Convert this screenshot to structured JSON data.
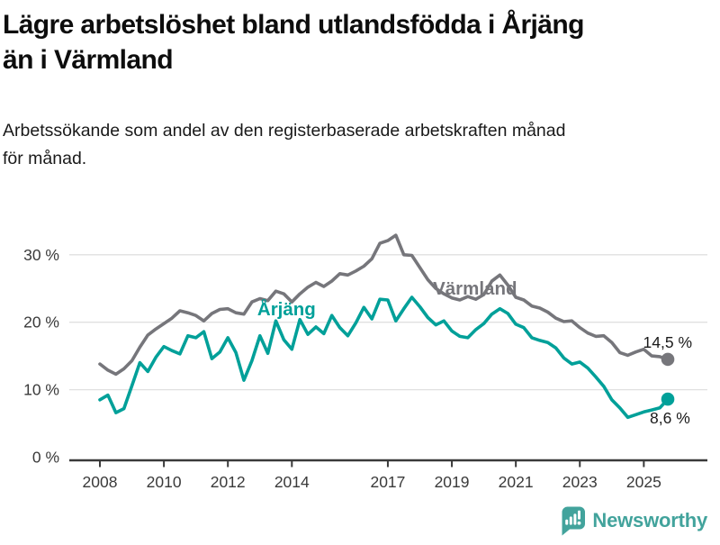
{
  "header": {
    "title_line1": "Lägre arbetslöshet bland utlandsfödda i Årjäng",
    "title_line2": "än i Värmland",
    "subtitle_line1": "Arbetssökande som andel av den registerbaserade arbetskraften månad",
    "subtitle_line2": "för månad."
  },
  "branding": {
    "logo_text": "Newsworthy",
    "brand_color": "#42a39c",
    "logo_icon": "newsworthy-speech-bubble-bar-chart-icon"
  },
  "chart_data": {
    "type": "line",
    "title": "Lägre arbetslöshet bland utlandsfödda i Årjäng än i Värmland",
    "subtitle": "Arbetssökande som andel av den registerbaserade arbetskraften månad för månad.",
    "grid": "horizontal",
    "legend_position": "inline-labels",
    "axis_color": "#3a3a3a",
    "gridline_color": "#e0e0e0",
    "tick_label_color": "#3a3a3a",
    "end_label_color": "#1a1a1a",
    "y_ticks": [
      0,
      10,
      20,
      30
    ],
    "y_suffix": " %",
    "ylim": [
      0,
      35
    ],
    "x_ticks": [
      "2008",
      "2010",
      "2012",
      "2014",
      "2017",
      "2019",
      "2021",
      "2023",
      "2025"
    ],
    "x_tick_years": [
      2008,
      2010,
      2012,
      2014,
      2017,
      2019,
      2021,
      2023,
      2025
    ],
    "x": [
      2008,
      2008.25,
      2008.5,
      2008.75,
      2009,
      2009.25,
      2009.5,
      2009.75,
      2010,
      2010.25,
      2010.5,
      2010.75,
      2011,
      2011.25,
      2011.5,
      2011.75,
      2012,
      2012.25,
      2012.5,
      2012.75,
      2013,
      2013.25,
      2013.5,
      2013.75,
      2014,
      2014.25,
      2014.5,
      2014.75,
      2015,
      2015.25,
      2015.5,
      2015.75,
      2016,
      2016.25,
      2016.5,
      2016.75,
      2017,
      2017.25,
      2017.5,
      2017.75,
      2018,
      2018.25,
      2018.5,
      2018.75,
      2019,
      2019.25,
      2019.5,
      2019.75,
      2020,
      2020.25,
      2020.5,
      2020.75,
      2021,
      2021.25,
      2021.5,
      2021.75,
      2022,
      2022.25,
      2022.5,
      2022.75,
      2023,
      2023.25,
      2023.5,
      2023.75,
      2024,
      2024.25,
      2024.5,
      2024.75,
      2025,
      2025.25,
      2025.5,
      2025.75
    ],
    "series": [
      {
        "name": "Värmland",
        "color": "#76767b",
        "end_label": "14,5 %",
        "end_value": 14.5,
        "end_label_anchor": "end",
        "end_label_dx": 27,
        "end_label_dy": -13,
        "inline_label": {
          "text": "Värmland",
          "x": 2018.41,
          "y": 24.1
        },
        "values": [
          13.8,
          12.9,
          12.3,
          13.1,
          14.3,
          16.3,
          18.1,
          19.0,
          19.8,
          20.6,
          21.7,
          21.4,
          21.0,
          20.2,
          21.3,
          21.9,
          22.0,
          21.4,
          21.2,
          23.0,
          23.5,
          23.2,
          24.6,
          24.2,
          23.0,
          24.2,
          25.2,
          25.9,
          25.3,
          26.1,
          27.2,
          27.0,
          27.6,
          28.3,
          29.4,
          31.7,
          32.1,
          32.9,
          30.0,
          29.9,
          28.1,
          26.3,
          25.0,
          24.2,
          23.6,
          23.3,
          23.8,
          23.4,
          24.1,
          26.1,
          27.0,
          25.5,
          23.7,
          23.3,
          22.4,
          22.1,
          21.5,
          20.6,
          20.1,
          20.2,
          19.2,
          18.4,
          17.9,
          18.0,
          17.0,
          15.5,
          15.1,
          15.6,
          16.0,
          15.0,
          14.9,
          14.5
        ]
      },
      {
        "name": "Årjäng",
        "color": "#00a099",
        "end_label": "8,6 %",
        "end_value": 8.6,
        "end_label_anchor": "start",
        "end_label_dx": -20,
        "end_label_dy": 27,
        "inline_label": {
          "text": "Årjäng",
          "x": 2012.92,
          "y": 21.0
        },
        "values": [
          8.5,
          9.2,
          6.6,
          7.2,
          10.6,
          14.0,
          12.7,
          14.8,
          16.4,
          15.8,
          15.3,
          18.0,
          17.7,
          18.6,
          14.6,
          15.6,
          17.7,
          15.5,
          11.4,
          14.3,
          18.0,
          15.4,
          20.2,
          17.4,
          16.0,
          20.4,
          18.2,
          19.3,
          18.3,
          21.0,
          19.2,
          18.0,
          19.9,
          22.2,
          20.5,
          23.4,
          23.3,
          20.2,
          22.0,
          23.7,
          22.3,
          20.7,
          19.6,
          20.2,
          18.7,
          17.9,
          17.7,
          18.9,
          19.8,
          21.2,
          22.0,
          21.3,
          19.7,
          19.2,
          17.7,
          17.3,
          17.0,
          16.2,
          14.7,
          13.8,
          14.1,
          13.2,
          11.9,
          10.5,
          8.5,
          7.3,
          5.9,
          6.3,
          6.7,
          7.0,
          7.3,
          8.6
        ]
      }
    ]
  }
}
